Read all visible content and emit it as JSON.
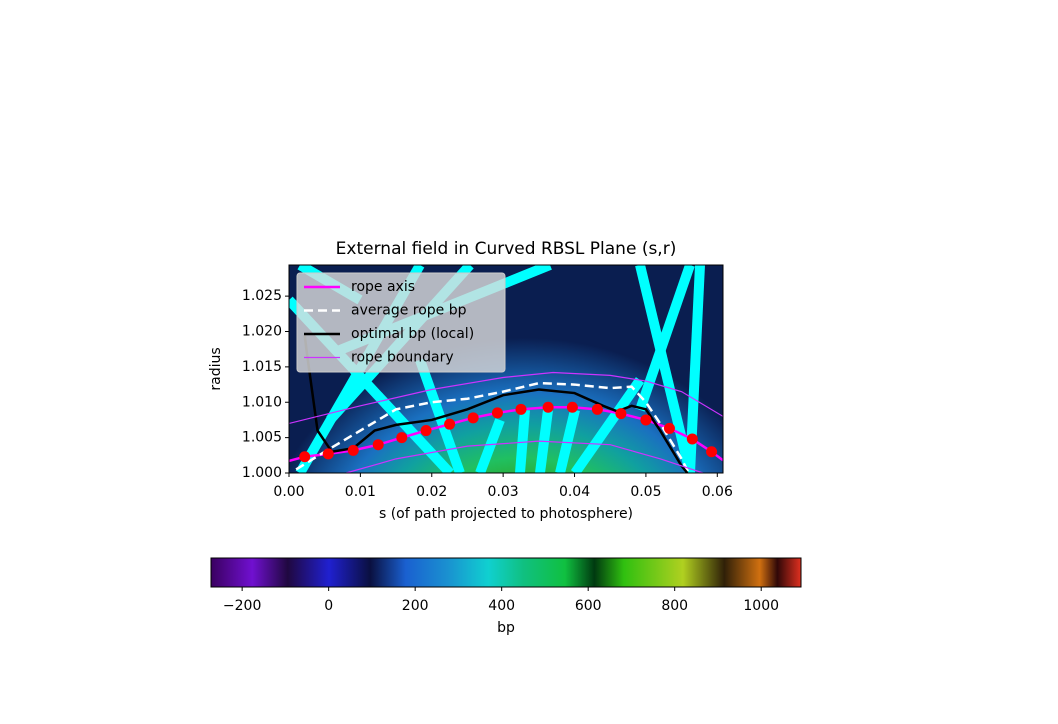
{
  "chart_data": {
    "type": "line",
    "title": "External field in Curved RBSL Plane (s,r)",
    "xlabel": "s (of path projected to photosphere)",
    "ylabel": "radius",
    "xlim": [
      0,
      0.0608
    ],
    "ylim": [
      1.0,
      1.0294
    ],
    "xticks": [
      {
        "value": 0,
        "label": "0.00"
      },
      {
        "value": 0.01,
        "label": "0.01"
      },
      {
        "value": 0.02,
        "label": "0.02"
      },
      {
        "value": 0.03,
        "label": "0.03"
      },
      {
        "value": 0.04,
        "label": "0.04"
      },
      {
        "value": 0.05,
        "label": "0.05"
      },
      {
        "value": 0.06,
        "label": "0.06"
      }
    ],
    "yticks": [
      {
        "value": 1.0,
        "label": "1.000"
      },
      {
        "value": 1.005,
        "label": "1.005"
      },
      {
        "value": 1.01,
        "label": "1.010"
      },
      {
        "value": 1.015,
        "label": "1.015"
      },
      {
        "value": 1.02,
        "label": "1.020"
      },
      {
        "value": 1.025,
        "label": "1.025"
      }
    ],
    "legend": "upper left",
    "series": [
      {
        "name": "rope axis",
        "color": "#ff00ff",
        "linewidth": 2.5,
        "linestyle": "solid",
        "x": [
          0,
          0.0022,
          0.0055,
          0.009,
          0.0125,
          0.0158,
          0.0192,
          0.0225,
          0.0258,
          0.0292,
          0.0325,
          0.0363,
          0.0397,
          0.0432,
          0.0465,
          0.05,
          0.0533,
          0.0565,
          0.0592,
          0.0608
        ],
        "values": [
          1.0017,
          1.0023,
          1.0027,
          1.0032,
          1.004,
          1.005,
          1.006,
          1.0069,
          1.0078,
          1.0085,
          1.009,
          1.0093,
          1.0093,
          1.009,
          1.0084,
          1.0075,
          1.0063,
          1.0048,
          1.003,
          1.0018
        ]
      },
      {
        "name": "average rope bp",
        "color": "#ffffff",
        "linewidth": 2.5,
        "linestyle": "dashed",
        "x": [
          0.001,
          0.005,
          0.01,
          0.015,
          0.02,
          0.025,
          0.03,
          0.035,
          0.04,
          0.045,
          0.048,
          0.05,
          0.052,
          0.055,
          0.056
        ],
        "values": [
          1.0005,
          1.003,
          1.006,
          1.009,
          1.01,
          1.0105,
          1.0115,
          1.0127,
          1.0125,
          1.012,
          1.0122,
          1.01,
          1.007,
          1.002,
          1.0
        ]
      },
      {
        "name": "optimal bp (local)",
        "color": "#000000",
        "linewidth": 2.5,
        "linestyle": "solid",
        "x": [
          0.0022,
          0.0025,
          0.004,
          0.006,
          0.009,
          0.012,
          0.015,
          0.02,
          0.025,
          0.03,
          0.035,
          0.04,
          0.044,
          0.046,
          0.048,
          0.05,
          0.052,
          0.055,
          0.0558
        ],
        "values": [
          1.0195,
          1.017,
          1.006,
          1.003,
          1.0035,
          1.006,
          1.0068,
          1.0075,
          1.009,
          1.011,
          1.0118,
          1.0113,
          1.0095,
          1.0087,
          1.0095,
          1.009,
          1.006,
          1.001,
          1.0
        ]
      },
      {
        "name": "rope boundary",
        "color": "#cc33ff",
        "linewidth": 1.2,
        "linestyle": "solid",
        "x": [
          0,
          0.01,
          0.02,
          0.03,
          0.037,
          0.045,
          0.05,
          0.055,
          0.0608,
          null,
          0.008,
          0.015,
          0.025,
          0.035,
          0.045,
          0.052,
          0.058
        ],
        "values": [
          1.007,
          1.0095,
          1.0118,
          1.0135,
          1.0142,
          1.0138,
          1.013,
          1.0115,
          1.008,
          null,
          1.0,
          1.002,
          1.0038,
          1.0045,
          1.004,
          1.002,
          1.0
        ]
      }
    ],
    "markers": {
      "color": "#ff0000",
      "x": [
        0.0022,
        0.0055,
        0.009,
        0.0125,
        0.0158,
        0.0192,
        0.0225,
        0.0258,
        0.0292,
        0.0325,
        0.0363,
        0.0397,
        0.0432,
        0.0465,
        0.05,
        0.0533,
        0.0565,
        0.0592
      ],
      "values": [
        1.0023,
        1.0027,
        1.0032,
        1.004,
        1.005,
        1.006,
        1.0069,
        1.0078,
        1.0085,
        1.009,
        1.0093,
        1.0093,
        1.009,
        1.0084,
        1.0075,
        1.0063,
        1.0048,
        1.003
      ]
    },
    "colorbar": {
      "label": "bp",
      "xlim": [
        -272,
        1092
      ],
      "ticks": [
        {
          "value": -200,
          "label": "−200"
        },
        0,
        200,
        400,
        600,
        800,
        1000
      ]
    }
  }
}
